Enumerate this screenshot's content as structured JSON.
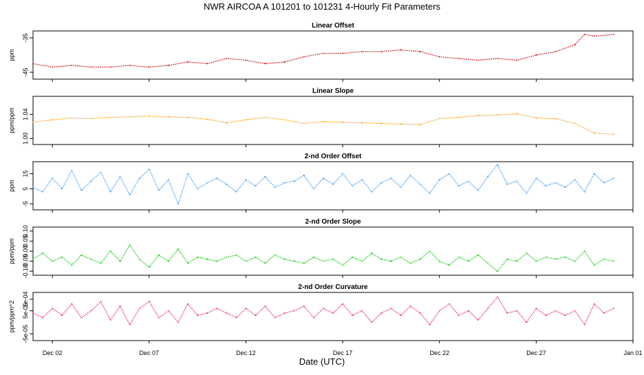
{
  "figure": {
    "title": "NWR   AIRCOA A   101201 to 101231   4-Hourly Fit Parameters",
    "xlabel": "Date (UTC)",
    "x_ticks": [
      "Dec 02",
      "Dec 07",
      "Dec 12",
      "Dec 17",
      "Dec 22",
      "Dec 27",
      "Jan 01"
    ]
  },
  "chart_data": [
    {
      "type": "line",
      "title": "Linear Offset",
      "ylabel": "ppm",
      "ylim": [
        -47,
        -33
      ],
      "yticks": [
        -45,
        -35
      ],
      "ytick_labels": [
        "-45",
        "-35"
      ],
      "color": "#cc0000",
      "x_range": [
        "Dec 01 00:00",
        "Jan 01 00:00"
      ],
      "x": [
        1.0,
        2.0,
        3.0,
        4.0,
        5.0,
        6.0,
        7.0,
        8.0,
        9.0,
        10.0,
        11.0,
        12.0,
        13.0,
        14.0,
        15.0,
        16.0,
        17.0,
        18.0,
        19.0,
        20.0,
        21.0,
        22.0,
        23.0,
        24.0,
        25.0,
        26.0,
        27.0,
        28.0,
        29.0,
        29.5,
        30.0,
        31.0
      ],
      "values": [
        -42.5,
        -43.5,
        -43.0,
        -43.5,
        -43.5,
        -43.0,
        -43.5,
        -43.0,
        -42.0,
        -42.5,
        -41.0,
        -41.5,
        -42.5,
        -42.0,
        -40.5,
        -39.5,
        -39.5,
        -39.0,
        -39.0,
        -38.5,
        -39.0,
        -40.5,
        -41.0,
        -41.5,
        -41.0,
        -41.5,
        -40.0,
        -39.0,
        -37.0,
        -34.0,
        -34.5,
        -34.0
      ]
    },
    {
      "type": "line",
      "title": "Linear Slope",
      "ylabel": "ppm/ppm",
      "ylim": [
        0.99,
        1.07
      ],
      "yticks": [
        1.0,
        1.04
      ],
      "ytick_labels": [
        "1.00",
        "1.04"
      ],
      "color": "#ff9900",
      "x_range": [
        "Dec 01 00:00",
        "Jan 01 00:00"
      ],
      "x": [
        1.0,
        2.0,
        3.0,
        4.0,
        5.0,
        6.0,
        7.0,
        8.0,
        9.0,
        10.0,
        11.0,
        12.0,
        13.0,
        14.0,
        15.0,
        16.0,
        17.0,
        18.0,
        19.0,
        20.0,
        21.0,
        22.0,
        23.0,
        24.0,
        25.0,
        26.0,
        27.0,
        28.0,
        29.0,
        30.0,
        31.0
      ],
      "values": [
        1.027,
        1.031,
        1.034,
        1.033,
        1.035,
        1.036,
        1.037,
        1.036,
        1.035,
        1.032,
        1.026,
        1.031,
        1.035,
        1.031,
        1.025,
        1.028,
        1.027,
        1.026,
        1.025,
        1.024,
        1.023,
        1.033,
        1.035,
        1.038,
        1.039,
        1.041,
        1.034,
        1.033,
        1.025,
        1.009,
        1.007
      ]
    },
    {
      "type": "line",
      "title": "2-nd Order Offset",
      "ylabel": "ppm",
      "ylim": [
        -9,
        23
      ],
      "yticks": [
        -5,
        5,
        15
      ],
      "ytick_labels": [
        "-5",
        "5",
        "15"
      ],
      "color": "#3399ff",
      "x_range": [
        "Dec 01 00:00",
        "Jan 01 00:00"
      ],
      "x": [
        1.0,
        1.5,
        2.0,
        2.5,
        3.0,
        3.5,
        4.0,
        4.5,
        5.0,
        5.5,
        6.0,
        6.5,
        7.0,
        7.5,
        8.0,
        8.5,
        9.0,
        9.5,
        10.0,
        10.5,
        11.0,
        11.5,
        12.0,
        12.5,
        13.0,
        13.5,
        14.0,
        14.5,
        15.0,
        15.5,
        16.0,
        16.5,
        17.0,
        17.5,
        18.0,
        18.5,
        19.0,
        19.5,
        20.0,
        20.5,
        21.0,
        21.5,
        22.0,
        22.5,
        23.0,
        23.5,
        24.0,
        24.5,
        25.0,
        25.5,
        26.0,
        26.5,
        27.0,
        27.5,
        28.0,
        28.5,
        29.0,
        29.5,
        30.0,
        30.5,
        31.0
      ],
      "values": [
        6,
        3,
        12,
        5,
        17,
        4,
        10,
        16,
        3,
        13,
        1,
        12,
        18,
        4,
        11,
        -5,
        15,
        5,
        9,
        12,
        8,
        3,
        11,
        7,
        13,
        6,
        9,
        10,
        14,
        5,
        12,
        8,
        15,
        7,
        11,
        3,
        9,
        12,
        6,
        14,
        8,
        2,
        11,
        15,
        7,
        10,
        4,
        13,
        21,
        8,
        10,
        2,
        12,
        7,
        9,
        6,
        11,
        3,
        15,
        9,
        12
      ]
    },
    {
      "type": "line",
      "title": "2-nd Order Slope",
      "ylabel": "ppm/ppm",
      "ylim": [
        -0.12,
        0.12
      ],
      "yticks": [
        -0.1,
        -0.05,
        0.0,
        0.05,
        0.1
      ],
      "ytick_labels": [
        "-0.10",
        "-0.05",
        "0.00",
        "0.05",
        "0.10"
      ],
      "color": "#00cc00",
      "x_range": [
        "Dec 01 00:00",
        "Jan 01 00:00"
      ],
      "x": [
        1.0,
        1.5,
        2.0,
        2.5,
        3.0,
        3.5,
        4.0,
        4.5,
        5.0,
        5.5,
        6.0,
        6.5,
        7.0,
        7.5,
        8.0,
        8.5,
        9.0,
        9.5,
        10.0,
        10.5,
        11.0,
        11.5,
        12.0,
        12.5,
        13.0,
        13.5,
        14.0,
        14.5,
        15.0,
        15.5,
        16.0,
        16.5,
        17.0,
        17.5,
        18.0,
        18.5,
        19.0,
        19.5,
        20.0,
        20.5,
        21.0,
        21.5,
        22.0,
        22.5,
        23.0,
        23.5,
        24.0,
        24.5,
        25.0,
        25.5,
        26.0,
        26.5,
        27.0,
        27.5,
        28.0,
        28.5,
        29.0,
        29.5,
        30.0,
        30.5,
        31.0
      ],
      "values": [
        -0.04,
        -0.01,
        -0.05,
        -0.03,
        -0.07,
        -0.02,
        -0.04,
        -0.06,
        0.0,
        -0.05,
        0.03,
        -0.04,
        -0.08,
        -0.02,
        -0.05,
        0.01,
        -0.06,
        -0.03,
        -0.04,
        -0.05,
        -0.03,
        -0.02,
        -0.05,
        -0.03,
        -0.06,
        -0.02,
        -0.04,
        -0.05,
        -0.06,
        -0.03,
        -0.05,
        -0.04,
        -0.07,
        -0.03,
        -0.05,
        -0.01,
        -0.04,
        -0.05,
        -0.03,
        -0.06,
        -0.04,
        0.0,
        -0.05,
        -0.07,
        -0.03,
        -0.05,
        -0.02,
        -0.06,
        -0.1,
        -0.04,
        -0.05,
        -0.01,
        -0.05,
        -0.03,
        -0.04,
        -0.03,
        -0.05,
        0.0,
        -0.07,
        -0.04,
        -0.05
      ]
    },
    {
      "type": "line",
      "title": "2-nd Order Curvature",
      "ylabel": "ppm/ppm^2",
      "ylim": [
        -8e-05,
        0.00013
      ],
      "yticks": [
        -5e-05,
        5e-05,
        0.0001
      ],
      "ytick_labels": [
        "-5e-05",
        "5e-05",
        "1e-04"
      ],
      "color": "#ee2255",
      "x_range": [
        "Dec 01 00:00",
        "Jan 01 00:00"
      ],
      "x": [
        1.0,
        1.5,
        2.0,
        2.5,
        3.0,
        3.5,
        4.0,
        4.5,
        5.0,
        5.5,
        6.0,
        6.5,
        7.0,
        7.5,
        8.0,
        8.5,
        9.0,
        9.5,
        10.0,
        10.5,
        11.0,
        11.5,
        12.0,
        12.5,
        13.0,
        13.5,
        14.0,
        14.5,
        15.0,
        15.5,
        16.0,
        16.5,
        17.0,
        17.5,
        18.0,
        18.5,
        19.0,
        19.5,
        20.0,
        20.5,
        21.0,
        21.5,
        22.0,
        22.5,
        23.0,
        23.5,
        24.0,
        24.5,
        25.0,
        25.5,
        26.0,
        26.5,
        27.0,
        27.5,
        28.0,
        28.5,
        29.0,
        29.5,
        30.0,
        30.5,
        31.0
      ],
      "values": [
        4e-05,
        2e-05,
        6e-05,
        3e-05,
        8e-05,
        2e-05,
        5e-05,
        9e-05,
        1e-05,
        7e-05,
        -1e-05,
        6e-05,
        9e-05,
        2e-05,
        5e-05,
        0.0,
        8e-05,
        3e-05,
        4e-05,
        6e-05,
        4e-05,
        2e-05,
        6e-05,
        3e-05,
        7e-05,
        2e-05,
        4e-05,
        5e-05,
        7e-05,
        2e-05,
        6e-05,
        4e-05,
        8e-05,
        3e-05,
        5e-05,
        0.0,
        4e-05,
        6e-05,
        3e-05,
        7e-05,
        4e-05,
        -1e-05,
        5e-05,
        8e-05,
        3e-05,
        5e-05,
        1e-05,
        6e-05,
        0.00011,
        4e-05,
        5e-05,
        0.0,
        6e-05,
        3e-05,
        5e-05,
        3e-05,
        5e-05,
        -1e-05,
        8e-05,
        4e-05,
        6e-05
      ]
    }
  ]
}
